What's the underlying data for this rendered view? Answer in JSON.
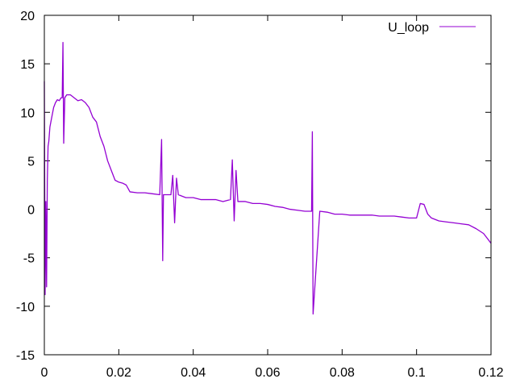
{
  "chart_data": {
    "type": "line",
    "title": "",
    "xlabel": "",
    "ylabel": "",
    "xlim": [
      0,
      0.12
    ],
    "ylim": [
      -15,
      20
    ],
    "x_ticks": [
      0,
      0.02,
      0.04,
      0.06,
      0.08,
      0.1,
      0.12
    ],
    "x_tick_labels": [
      "0",
      "0.02",
      "0.04",
      "0.06",
      "0.08",
      "0.1",
      "0.12"
    ],
    "y_ticks": [
      -15,
      -10,
      -5,
      0,
      5,
      10,
      15,
      20
    ],
    "y_tick_labels": [
      "-15",
      "-10",
      "-5",
      "0",
      "5",
      "10",
      "15",
      "20"
    ],
    "grid": false,
    "legend_position": "top-right",
    "series": [
      {
        "name": "U_loop",
        "color": "#9400d3",
        "x": [
          0,
          0.0002,
          0.0004,
          0.0006,
          0.0008,
          0.001,
          0.0012,
          0.0015,
          0.002,
          0.0025,
          0.003,
          0.0035,
          0.004,
          0.0045,
          0.0048,
          0.005,
          0.0052,
          0.0055,
          0.006,
          0.007,
          0.008,
          0.009,
          0.01,
          0.011,
          0.012,
          0.013,
          0.014,
          0.015,
          0.016,
          0.017,
          0.018,
          0.019,
          0.02,
          0.021,
          0.022,
          0.023,
          0.025,
          0.027,
          0.029,
          0.031,
          0.0315,
          0.0318,
          0.032,
          0.033,
          0.034,
          0.0345,
          0.035,
          0.0355,
          0.036,
          0.038,
          0.04,
          0.042,
          0.044,
          0.046,
          0.048,
          0.05,
          0.0505,
          0.051,
          0.0515,
          0.052,
          0.054,
          0.056,
          0.058,
          0.06,
          0.062,
          0.064,
          0.066,
          0.068,
          0.07,
          0.0718,
          0.072,
          0.0722,
          0.074,
          0.076,
          0.078,
          0.08,
          0.082,
          0.084,
          0.086,
          0.088,
          0.09,
          0.092,
          0.094,
          0.096,
          0.098,
          0.1,
          0.101,
          0.102,
          0.103,
          0.104,
          0.106,
          0.108,
          0.11,
          0.112,
          0.114,
          0.116,
          0.118,
          0.119,
          0.12
        ],
        "y": [
          13.2,
          -8.8,
          0.8,
          -8,
          3,
          6.5,
          7,
          8.5,
          9.5,
          10.5,
          11,
          11.3,
          11.2,
          11.5,
          11.5,
          17.2,
          6.8,
          11.5,
          11.8,
          11.8,
          11.5,
          11.2,
          11.3,
          11,
          10.5,
          9.5,
          9,
          7.5,
          6.5,
          5,
          4,
          3,
          2.8,
          2.7,
          2.5,
          1.8,
          1.7,
          1.7,
          1.6,
          1.5,
          7.2,
          -5.3,
          1.5,
          1.5,
          1.5,
          3.5,
          -1.4,
          3.2,
          1.5,
          1.2,
          1.2,
          1,
          1,
          1,
          0.8,
          1,
          5.1,
          -1.2,
          4,
          0.8,
          0.8,
          0.6,
          0.6,
          0.5,
          0.3,
          0.2,
          0,
          -0.1,
          -0.2,
          -0.2,
          8,
          -10.8,
          -0.2,
          -0.3,
          -0.5,
          -0.5,
          -0.6,
          -0.6,
          -0.6,
          -0.6,
          -0.7,
          -0.7,
          -0.7,
          -0.8,
          -0.9,
          -0.9,
          0.6,
          0.5,
          -0.5,
          -0.9,
          -1.2,
          -1.3,
          -1.4,
          -1.5,
          -1.6,
          -2,
          -2.5,
          -3,
          -3.5
        ]
      }
    ]
  }
}
